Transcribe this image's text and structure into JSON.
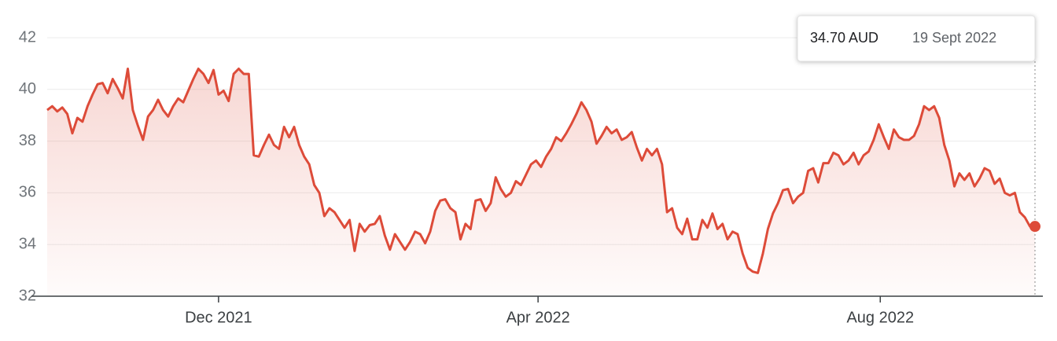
{
  "chart_data": {
    "type": "line",
    "series": [
      {
        "color": "#dd4b39",
        "values": [
          39.2,
          39.35,
          39.15,
          39.3,
          39.05,
          38.3,
          38.9,
          38.75,
          39.35,
          39.8,
          40.2,
          40.25,
          39.85,
          40.4,
          40.05,
          39.65,
          40.8,
          39.2,
          38.6,
          38.05,
          38.95,
          39.2,
          39.6,
          39.2,
          38.95,
          39.35,
          39.65,
          39.5,
          39.95,
          40.4,
          40.8,
          40.6,
          40.25,
          40.75,
          39.8,
          39.95,
          39.55,
          40.6,
          40.8,
          40.6,
          40.6,
          37.45,
          37.4,
          37.85,
          38.25,
          37.85,
          37.7,
          38.55,
          38.15,
          38.55,
          37.85,
          37.4,
          37.1,
          36.3,
          36.0,
          35.1,
          35.4,
          35.25,
          34.95,
          34.65,
          34.95,
          33.75,
          34.8,
          34.5,
          34.75,
          34.8,
          35.1,
          34.35,
          33.8,
          34.4,
          34.1,
          33.8,
          34.1,
          34.5,
          34.4,
          34.05,
          34.5,
          35.3,
          35.7,
          35.75,
          35.4,
          35.25,
          34.2,
          34.8,
          34.6,
          35.7,
          35.75,
          35.3,
          35.6,
          36.6,
          36.15,
          35.85,
          36.0,
          36.45,
          36.3,
          36.7,
          37.1,
          37.25,
          37.0,
          37.4,
          37.7,
          38.15,
          38.0,
          38.3,
          38.65,
          39.05,
          39.5,
          39.2,
          38.75,
          37.9,
          38.2,
          38.55,
          38.3,
          38.45,
          38.05,
          38.15,
          38.35,
          37.75,
          37.25,
          37.7,
          37.45,
          37.7,
          37.1,
          35.25,
          35.4,
          34.65,
          34.4,
          35.0,
          34.2,
          34.2,
          34.95,
          34.65,
          35.2,
          34.6,
          34.8,
          34.2,
          34.5,
          34.4,
          33.65,
          33.1,
          32.95,
          32.9,
          33.65,
          34.6,
          35.2,
          35.6,
          36.1,
          36.15,
          35.6,
          35.85,
          36.0,
          36.85,
          36.95,
          36.4,
          37.15,
          37.15,
          37.55,
          37.45,
          37.1,
          37.25,
          37.55,
          37.1,
          37.45,
          37.6,
          38.05,
          38.65,
          38.15,
          37.7,
          38.45,
          38.15,
          38.05,
          38.05,
          38.2,
          38.65,
          39.35,
          39.2,
          39.35,
          38.9,
          37.85,
          37.25,
          36.25,
          36.75,
          36.5,
          36.75,
          36.25,
          36.55,
          36.95,
          36.85,
          36.35,
          36.55,
          36.0,
          35.9,
          36.0,
          35.25,
          35.05,
          34.7,
          34.7
        ]
      }
    ],
    "xlim": [
      0,
      196
    ],
    "xticks": [
      {
        "value": 34,
        "label": "Dec 2021"
      },
      {
        "value": 97.4,
        "label": "Apr 2022"
      },
      {
        "value": 165.3,
        "label": "Aug 2022"
      }
    ],
    "ylim": [
      32,
      42.1
    ],
    "yticks": [
      32,
      34,
      36,
      38,
      40,
      42
    ],
    "grid": true,
    "tooltip": {
      "value_label": "34.70 AUD",
      "date": "19 Sept 2022"
    }
  }
}
